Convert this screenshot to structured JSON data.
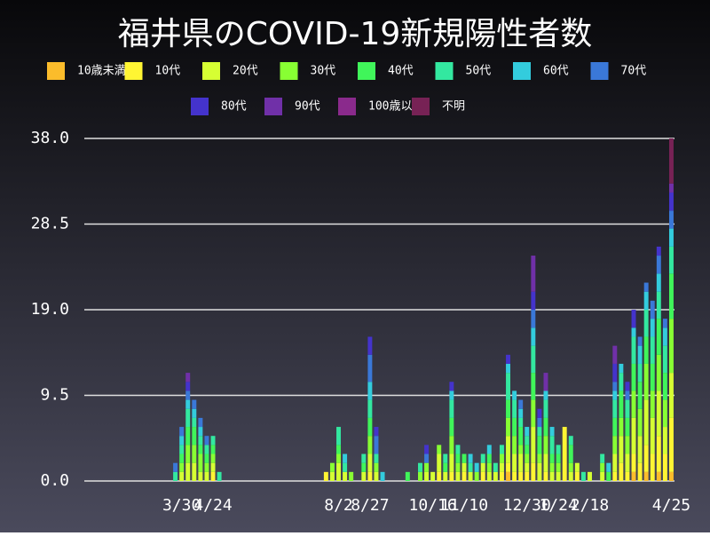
{
  "chart_data": {
    "type": "stacked_bar",
    "title": "福井県のCOVID-19新規陽性者数",
    "categories": [
      null,
      null,
      null,
      null,
      null,
      null,
      null,
      null,
      null,
      null,
      null,
      null,
      null,
      null,
      null,
      "3/30",
      null,
      null,
      null,
      null,
      "4/24",
      null,
      null,
      null,
      null,
      null,
      null,
      null,
      null,
      null,
      null,
      null,
      null,
      null,
      null,
      null,
      null,
      null,
      null,
      null,
      "8/2",
      null,
      null,
      null,
      null,
      "8/27",
      null,
      null,
      null,
      null,
      null,
      null,
      null,
      null,
      null,
      "10/16",
      null,
      null,
      null,
      null,
      "11/10",
      null,
      null,
      null,
      null,
      null,
      null,
      null,
      null,
      null,
      "12/30",
      null,
      null,
      null,
      null,
      "1/24",
      null,
      null,
      null,
      null,
      "2/18",
      null,
      null,
      null,
      null,
      null,
      null,
      null,
      null,
      null,
      null,
      null,
      null,
      "4/25"
    ],
    "ylim": [
      0,
      38
    ],
    "yticks": [
      {
        "value": 0,
        "label": "0.0"
      },
      9.5,
      {
        "value": 19,
        "label": "19.0"
      },
      28.5,
      {
        "value": 38,
        "label": "38.0"
      }
    ],
    "grid": true,
    "series": [
      {
        "name": "10歳未満",
        "color": "#fbbc2b",
        "values": [
          0,
          0,
          0,
          0,
          0,
          0,
          0,
          0,
          0,
          0,
          0,
          0,
          0,
          0,
          0,
          0,
          0,
          0,
          0,
          0,
          0,
          0,
          0,
          0,
          0,
          0,
          0,
          0,
          0,
          0,
          0,
          0,
          0,
          0,
          0,
          0,
          0,
          0,
          0,
          0,
          0,
          0,
          0,
          0,
          0,
          0,
          0,
          0,
          0,
          0,
          0,
          0,
          0,
          0,
          0,
          0,
          0,
          0,
          0,
          0,
          0,
          0,
          0,
          0,
          0,
          0,
          0,
          1,
          0,
          0,
          0,
          0,
          0,
          0,
          0,
          0,
          0,
          0,
          0,
          0,
          0,
          0,
          0,
          0,
          0,
          0,
          0,
          1,
          0,
          1,
          0,
          1,
          0,
          1
        ]
      },
      {
        "name": "10代",
        "color": "#fff533",
        "values": [
          0,
          0,
          0,
          0,
          0,
          0,
          0,
          0,
          0,
          0,
          0,
          0,
          0,
          0,
          0,
          0,
          0,
          0,
          0,
          0,
          1,
          0,
          0,
          0,
          0,
          0,
          0,
          0,
          0,
          0,
          0,
          0,
          0,
          0,
          0,
          0,
          0,
          0,
          1,
          0,
          0,
          0,
          0,
          0,
          0,
          1,
          0,
          0,
          0,
          0,
          0,
          0,
          0,
          0,
          0,
          0,
          1,
          0,
          1,
          0,
          1,
          0,
          0,
          1,
          0,
          0,
          1,
          1,
          1,
          1,
          1,
          2,
          0,
          1,
          0,
          0,
          6,
          0,
          1,
          0,
          0,
          0,
          0,
          0,
          1,
          2,
          1,
          2,
          2,
          3,
          3,
          4,
          3,
          6
        ]
      },
      {
        "name": "20代",
        "color": "#d6ff33",
        "values": [
          0,
          0,
          0,
          0,
          0,
          0,
          0,
          0,
          0,
          0,
          0,
          0,
          0,
          0,
          0,
          1,
          2,
          2,
          1,
          1,
          1,
          0,
          0,
          0,
          0,
          0,
          0,
          0,
          0,
          0,
          0,
          0,
          0,
          0,
          0,
          0,
          0,
          0,
          0,
          1,
          2,
          1,
          0,
          0,
          1,
          2,
          1,
          0,
          0,
          0,
          0,
          0,
          0,
          0,
          1,
          1,
          2,
          1,
          2,
          1,
          1,
          1,
          0,
          1,
          1,
          1,
          1,
          3,
          2,
          2,
          1,
          4,
          2,
          2,
          1,
          1,
          0,
          1,
          1,
          0,
          1,
          0,
          1,
          0,
          2,
          3,
          2,
          4,
          3,
          5,
          4,
          5,
          3,
          5
        ]
      },
      {
        "name": "30代",
        "color": "#88ff33",
        "values": [
          0,
          0,
          0,
          0,
          0,
          0,
          0,
          0,
          0,
          0,
          0,
          0,
          0,
          0,
          0,
          1,
          2,
          2,
          2,
          1,
          1,
          0,
          0,
          0,
          0,
          0,
          0,
          0,
          0,
          0,
          0,
          0,
          0,
          0,
          0,
          0,
          0,
          0,
          0,
          1,
          1,
          0,
          1,
          0,
          0,
          2,
          1,
          0,
          0,
          0,
          0,
          0,
          0,
          1,
          1,
          0,
          1,
          0,
          2,
          1,
          0,
          0,
          1,
          0,
          1,
          0,
          1,
          2,
          2,
          1,
          1,
          3,
          1,
          2,
          1,
          1,
          0,
          1,
          0,
          0,
          0,
          0,
          1,
          0,
          2,
          2,
          2,
          3,
          3,
          4,
          3,
          4,
          3,
          6
        ]
      },
      {
        "name": "40代",
        "color": "#40f55a",
        "values": [
          0,
          0,
          0,
          0,
          0,
          0,
          0,
          0,
          0,
          0,
          0,
          0,
          0,
          0,
          0,
          1,
          2,
          2,
          1,
          1,
          1,
          0,
          0,
          0,
          0,
          0,
          0,
          0,
          0,
          0,
          0,
          0,
          0,
          0,
          0,
          0,
          0,
          0,
          0,
          0,
          1,
          0,
          0,
          0,
          1,
          2,
          0,
          0,
          0,
          0,
          0,
          1,
          0,
          0,
          0,
          0,
          0,
          1,
          2,
          1,
          1,
          0,
          0,
          0,
          1,
          0,
          0,
          2,
          2,
          2,
          1,
          3,
          2,
          2,
          1,
          1,
          0,
          2,
          0,
          0,
          0,
          0,
          0,
          1,
          2,
          3,
          2,
          3,
          3,
          3,
          3,
          4,
          3,
          5
        ]
      },
      {
        "name": "50代",
        "color": "#33e8a0",
        "values": [
          0,
          0,
          0,
          0,
          0,
          0,
          0,
          0,
          0,
          0,
          0,
          0,
          0,
          0,
          1,
          1,
          2,
          1,
          1,
          1,
          1,
          1,
          0,
          0,
          0,
          0,
          0,
          0,
          0,
          0,
          0,
          0,
          0,
          0,
          0,
          0,
          0,
          0,
          0,
          0,
          2,
          1,
          0,
          0,
          1,
          2,
          1,
          0,
          0,
          0,
          0,
          0,
          0,
          1,
          0,
          0,
          0,
          1,
          2,
          1,
          0,
          1,
          0,
          1,
          0,
          1,
          1,
          3,
          2,
          1,
          1,
          3,
          1,
          2,
          2,
          1,
          0,
          1,
          0,
          1,
          0,
          0,
          1,
          0,
          2,
          2,
          2,
          3,
          2,
          3,
          3,
          3,
          3,
          3
        ]
      },
      {
        "name": "60代",
        "color": "#33ccdd",
        "values": [
          0,
          0,
          0,
          0,
          0,
          0,
          0,
          0,
          0,
          0,
          0,
          0,
          0,
          0,
          0,
          1,
          1,
          1,
          1,
          0,
          0,
          0,
          0,
          0,
          0,
          0,
          0,
          0,
          0,
          0,
          0,
          0,
          0,
          0,
          0,
          0,
          0,
          0,
          0,
          0,
          0,
          1,
          0,
          0,
          0,
          2,
          0,
          1,
          0,
          0,
          0,
          0,
          0,
          0,
          0,
          0,
          0,
          0,
          1,
          0,
          0,
          1,
          1,
          0,
          1,
          0,
          0,
          1,
          1,
          1,
          1,
          2,
          0,
          1,
          1,
          0,
          0,
          0,
          0,
          0,
          0,
          0,
          0,
          1,
          1,
          1,
          0,
          1,
          2,
          2,
          2,
          2,
          2,
          2
        ]
      },
      {
        "name": "70代",
        "color": "#3a78d8",
        "values": [
          0,
          0,
          0,
          0,
          0,
          0,
          0,
          0,
          0,
          0,
          0,
          0,
          0,
          0,
          1,
          1,
          1,
          1,
          1,
          1,
          0,
          0,
          0,
          0,
          0,
          0,
          0,
          0,
          0,
          0,
          0,
          0,
          0,
          0,
          0,
          0,
          0,
          0,
          0,
          0,
          0,
          0,
          0,
          0,
          0,
          3,
          2,
          0,
          0,
          0,
          0,
          0,
          0,
          0,
          1,
          0,
          0,
          0,
          0,
          0,
          0,
          0,
          0,
          0,
          0,
          0,
          0,
          0,
          0,
          1,
          0,
          2,
          1,
          0,
          0,
          0,
          0,
          0,
          0,
          0,
          0,
          0,
          0,
          0,
          1,
          0,
          1,
          0,
          1,
          1,
          2,
          2,
          1,
          2
        ]
      },
      {
        "name": "80代",
        "color": "#4433cc",
        "values": [
          0,
          0,
          0,
          0,
          0,
          0,
          0,
          0,
          0,
          0,
          0,
          0,
          0,
          0,
          0,
          0,
          1,
          0,
          0,
          0,
          0,
          0,
          0,
          0,
          0,
          0,
          0,
          0,
          0,
          0,
          0,
          0,
          0,
          0,
          0,
          0,
          0,
          0,
          0,
          0,
          0,
          0,
          0,
          0,
          0,
          2,
          1,
          0,
          0,
          0,
          0,
          0,
          0,
          0,
          1,
          0,
          0,
          0,
          1,
          0,
          0,
          0,
          0,
          0,
          0,
          0,
          0,
          1,
          0,
          0,
          0,
          2,
          1,
          0,
          0,
          0,
          0,
          0,
          0,
          0,
          0,
          0,
          0,
          0,
          2,
          0,
          1,
          2,
          0,
          0,
          0,
          1,
          0,
          2
        ]
      },
      {
        "name": "90代",
        "color": "#7030a8",
        "values": [
          0,
          0,
          0,
          0,
          0,
          0,
          0,
          0,
          0,
          0,
          0,
          0,
          0,
          0,
          0,
          0,
          1,
          0,
          0,
          0,
          0,
          0,
          0,
          0,
          0,
          0,
          0,
          0,
          0,
          0,
          0,
          0,
          0,
          0,
          0,
          0,
          0,
          0,
          0,
          0,
          0,
          0,
          0,
          0,
          0,
          0,
          0,
          0,
          0,
          0,
          0,
          0,
          0,
          0,
          0,
          0,
          0,
          0,
          0,
          0,
          0,
          0,
          0,
          0,
          0,
          0,
          0,
          0,
          0,
          0,
          0,
          4,
          0,
          2,
          0,
          0,
          0,
          0,
          0,
          0,
          0,
          0,
          0,
          0,
          2,
          0,
          0,
          0,
          0,
          0,
          0,
          0,
          0,
          1
        ]
      },
      {
        "name": "100歳以上",
        "color": "#8a2a8c",
        "values": [
          0,
          0,
          0,
          0,
          0,
          0,
          0,
          0,
          0,
          0,
          0,
          0,
          0,
          0,
          0,
          0,
          0,
          0,
          0,
          0,
          0,
          0,
          0,
          0,
          0,
          0,
          0,
          0,
          0,
          0,
          0,
          0,
          0,
          0,
          0,
          0,
          0,
          0,
          0,
          0,
          0,
          0,
          0,
          0,
          0,
          0,
          0,
          0,
          0,
          0,
          0,
          0,
          0,
          0,
          0,
          0,
          0,
          0,
          0,
          0,
          0,
          0,
          0,
          0,
          0,
          0,
          0,
          0,
          0,
          0,
          0,
          0,
          0,
          0,
          0,
          0,
          0,
          0,
          0,
          0,
          0,
          0,
          0,
          0,
          0,
          0,
          0,
          0,
          0,
          0,
          0,
          0,
          0,
          0
        ]
      },
      {
        "name": "不明",
        "color": "#772255",
        "values": [
          0,
          0,
          0,
          0,
          0,
          0,
          0,
          0,
          0,
          0,
          0,
          0,
          0,
          0,
          0,
          0,
          0,
          0,
          0,
          0,
          0,
          0,
          0,
          0,
          0,
          0,
          0,
          0,
          0,
          0,
          0,
          0,
          0,
          0,
          0,
          0,
          0,
          0,
          0,
          0,
          0,
          0,
          0,
          0,
          0,
          0,
          0,
          0,
          0,
          0,
          0,
          0,
          0,
          0,
          0,
          0,
          0,
          0,
          0,
          0,
          0,
          0,
          0,
          0,
          0,
          0,
          0,
          0,
          0,
          0,
          0,
          0,
          0,
          0,
          0,
          0,
          0,
          0,
          0,
          0,
          0,
          0,
          0,
          0,
          0,
          0,
          0,
          0,
          0,
          0,
          0,
          0,
          0,
          5
        ]
      }
    ]
  }
}
